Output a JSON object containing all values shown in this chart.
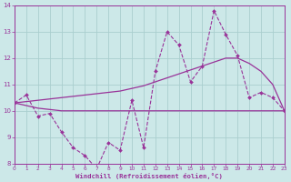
{
  "xlabel": "Windchill (Refroidissement éolien,°C)",
  "background_color": "#cce8e8",
  "grid_color": "#aacece",
  "line_color": "#993399",
  "x_hours": [
    0,
    1,
    2,
    3,
    4,
    5,
    6,
    7,
    8,
    9,
    10,
    11,
    12,
    13,
    14,
    15,
    16,
    17,
    18,
    19,
    20,
    21,
    22,
    23
  ],
  "windchill": [
    10.3,
    10.6,
    9.8,
    9.9,
    9.2,
    8.6,
    8.3,
    7.8,
    8.8,
    8.5,
    10.4,
    8.6,
    11.5,
    13.0,
    12.5,
    11.1,
    11.7,
    13.8,
    12.9,
    12.1,
    10.5,
    10.7,
    10.5,
    10.0
  ],
  "smooth_line": [
    10.3,
    10.35,
    10.4,
    10.45,
    10.5,
    10.55,
    10.6,
    10.65,
    10.7,
    10.75,
    10.85,
    10.95,
    11.1,
    11.25,
    11.4,
    11.55,
    11.7,
    11.85,
    12.0,
    12.0,
    11.8,
    11.5,
    11.0,
    10.0
  ],
  "flat_line": [
    10.3,
    10.2,
    10.1,
    10.05,
    10.0,
    10.0,
    10.0,
    10.0,
    10.0,
    10.0,
    10.0,
    10.0,
    10.0,
    10.0,
    10.0,
    10.0,
    10.0,
    10.0,
    10.0,
    10.0,
    10.0,
    10.0,
    10.0,
    10.0
  ],
  "ylim": [
    8,
    14
  ],
  "xlim": [
    0,
    23
  ],
  "yticks": [
    8,
    9,
    10,
    11,
    12,
    13,
    14
  ],
  "xticks": [
    0,
    1,
    2,
    3,
    4,
    5,
    6,
    7,
    8,
    9,
    10,
    11,
    12,
    13,
    14,
    15,
    16,
    17,
    18,
    19,
    20,
    21,
    22,
    23
  ]
}
